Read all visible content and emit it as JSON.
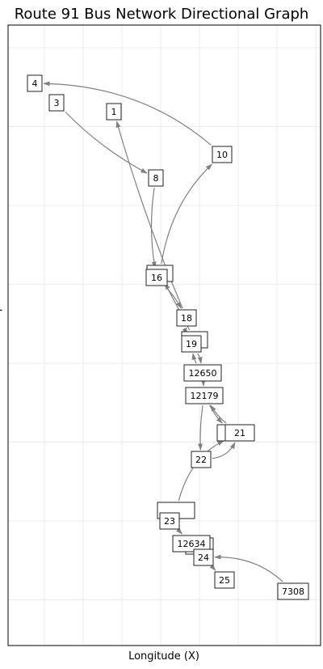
{
  "diagram": {
    "title": "Route 91 Bus Network Directional Graph",
    "xlabel": "Longitude (X)",
    "ylabel": "L",
    "grid": true,
    "edge_color": "#808080",
    "node_border_color": "#222222"
  },
  "nodes": [
    {
      "id": "n4",
      "label": "4"
    },
    {
      "id": "n3",
      "label": "3"
    },
    {
      "id": "n1",
      "label": "1"
    },
    {
      "id": "n10",
      "label": "10"
    },
    {
      "id": "n8",
      "label": "8"
    },
    {
      "id": "n16b",
      "label": ""
    },
    {
      "id": "n16",
      "label": "16"
    },
    {
      "id": "n18",
      "label": "18"
    },
    {
      "id": "n19b",
      "label": ""
    },
    {
      "id": "n19",
      "label": "19"
    },
    {
      "id": "n12650",
      "label": "12650"
    },
    {
      "id": "n12179",
      "label": "12179"
    },
    {
      "id": "n21b",
      "label": "1"
    },
    {
      "id": "n21",
      "label": "21"
    },
    {
      "id": "n22",
      "label": "22"
    },
    {
      "id": "n23b",
      "label": ""
    },
    {
      "id": "n23",
      "label": "23"
    },
    {
      "id": "n12634b",
      "label": ""
    },
    {
      "id": "n12634",
      "label": "12634"
    },
    {
      "id": "n24",
      "label": "24"
    },
    {
      "id": "n25",
      "label": "25"
    },
    {
      "id": "n7308",
      "label": "7308"
    }
  ],
  "edges": [
    {
      "from": "n10",
      "to": "n4"
    },
    {
      "from": "n3",
      "to": "n8"
    },
    {
      "from": "n18",
      "to": "n1"
    },
    {
      "from": "n16b",
      "to": "n10"
    },
    {
      "from": "n8",
      "to": "n16"
    },
    {
      "from": "n16",
      "to": "n18"
    },
    {
      "from": "n19b",
      "to": "n16b"
    },
    {
      "from": "n18",
      "to": "n19"
    },
    {
      "from": "n12650",
      "to": "n19"
    },
    {
      "from": "n19",
      "to": "n12650"
    },
    {
      "from": "n12650",
      "to": "n12179"
    },
    {
      "from": "n12179",
      "to": "n21b"
    },
    {
      "from": "n21",
      "to": "n12179"
    },
    {
      "from": "n12179",
      "to": "n22"
    },
    {
      "from": "n22",
      "to": "n21"
    },
    {
      "from": "n23b",
      "to": "n21"
    },
    {
      "from": "n23",
      "to": "n12634"
    },
    {
      "from": "n12634b",
      "to": "n24"
    },
    {
      "from": "n24",
      "to": "n25"
    },
    {
      "from": "n7308",
      "to": "n24"
    }
  ]
}
